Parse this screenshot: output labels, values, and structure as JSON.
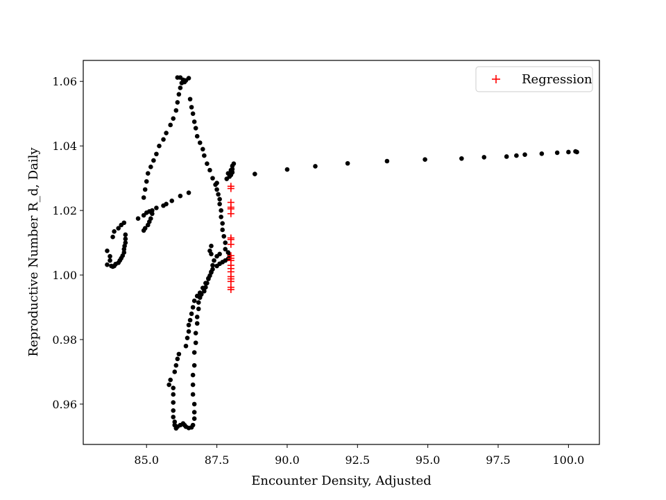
{
  "chart_data": {
    "type": "scatter",
    "title": "",
    "xlabel": "Encounter Density, Adjusted",
    "ylabel": "Reproductive Number R_d, Daily",
    "xlim": [
      82.75,
      101.1
    ],
    "ylim": [
      0.9475,
      1.0665
    ],
    "xticks": [
      "85.0",
      "87.5",
      "90.0",
      "92.5",
      "95.0",
      "97.5",
      "100.0"
    ],
    "xtick_values": [
      85.0,
      87.5,
      90.0,
      92.5,
      95.0,
      97.5,
      100.0
    ],
    "yticks": [
      "0.96",
      "0.98",
      "1.00",
      "1.02",
      "1.04",
      "1.06"
    ],
    "ytick_values": [
      0.96,
      0.98,
      1.0,
      1.02,
      1.04,
      1.06
    ],
    "grid": false,
    "legend_position": "top-right",
    "colors": {
      "observed": "#000000",
      "regression": "#ff0000"
    },
    "series": [
      {
        "marker": "dot",
        "color": "#000000",
        "points": [
          [
            83.6,
            1.0075
          ],
          [
            83.6,
            1.0032
          ],
          [
            83.7,
            1.0045
          ],
          [
            83.7,
            1.0058
          ],
          [
            83.75,
            1.0028
          ],
          [
            83.8,
            1.0026
          ],
          [
            83.85,
            1.0028
          ],
          [
            83.9,
            1.0034
          ],
          [
            84.0,
            1.0038
          ],
          [
            84.05,
            1.0045
          ],
          [
            84.1,
            1.0052
          ],
          [
            84.15,
            1.006
          ],
          [
            84.2,
            1.007
          ],
          [
            84.2,
            1.008
          ],
          [
            84.22,
            1.009
          ],
          [
            84.25,
            1.01
          ],
          [
            84.25,
            1.0112
          ],
          [
            84.25,
            1.0125
          ],
          [
            83.8,
            1.0118
          ],
          [
            83.85,
            1.0135
          ],
          [
            84.0,
            1.0145
          ],
          [
            84.1,
            1.0155
          ],
          [
            84.2,
            1.0162
          ],
          [
            84.9,
            1.0138
          ],
          [
            84.95,
            1.0145
          ],
          [
            85.05,
            1.0155
          ],
          [
            85.1,
            1.0165
          ],
          [
            85.15,
            1.0175
          ],
          [
            85.2,
            1.019
          ],
          [
            84.7,
            1.0175
          ],
          [
            84.9,
            1.0185
          ],
          [
            85.0,
            1.0193
          ],
          [
            85.1,
            1.0197
          ],
          [
            85.2,
            1.02
          ],
          [
            85.35,
            1.0208
          ],
          [
            85.6,
            1.0215
          ],
          [
            85.7,
            1.022
          ],
          [
            85.9,
            1.023
          ],
          [
            86.2,
            1.0245
          ],
          [
            86.5,
            1.0255
          ],
          [
            84.9,
            1.024
          ],
          [
            84.95,
            1.0265
          ],
          [
            85.0,
            1.029
          ],
          [
            85.05,
            1.0315
          ],
          [
            85.15,
            1.0335
          ],
          [
            85.25,
            1.0355
          ],
          [
            85.35,
            1.0375
          ],
          [
            85.45,
            1.04
          ],
          [
            85.6,
            1.042
          ],
          [
            85.7,
            1.044
          ],
          [
            85.85,
            1.0465
          ],
          [
            85.95,
            1.0485
          ],
          [
            86.05,
            1.051
          ],
          [
            86.1,
            1.0535
          ],
          [
            86.15,
            1.056
          ],
          [
            86.2,
            1.058
          ],
          [
            86.25,
            1.0595
          ],
          [
            86.1,
            1.0612
          ],
          [
            86.2,
            1.0612
          ],
          [
            86.3,
            1.0605
          ],
          [
            86.35,
            1.0598
          ],
          [
            86.4,
            1.0603
          ],
          [
            86.5,
            1.061
          ],
          [
            86.55,
            1.0545
          ],
          [
            86.6,
            1.052
          ],
          [
            86.65,
            1.05
          ],
          [
            86.7,
            1.0475
          ],
          [
            86.75,
            1.0455
          ],
          [
            86.8,
            1.043
          ],
          [
            86.9,
            1.041
          ],
          [
            87.0,
            1.039
          ],
          [
            87.05,
            1.037
          ],
          [
            87.15,
            1.0345
          ],
          [
            87.25,
            1.0325
          ],
          [
            87.35,
            1.03
          ],
          [
            87.45,
            1.028
          ],
          [
            87.5,
            1.0265
          ],
          [
            87.55,
            1.025
          ],
          [
            87.6,
            1.0235
          ],
          [
            87.6,
            1.022
          ],
          [
            87.65,
            1.02
          ],
          [
            87.65,
            1.018
          ],
          [
            87.7,
            1.016
          ],
          [
            87.7,
            1.014
          ],
          [
            87.75,
            1.012
          ],
          [
            87.8,
            1.01
          ],
          [
            87.8,
            1.008
          ],
          [
            87.9,
            1.007
          ],
          [
            87.95,
            1.006
          ],
          [
            87.9,
            1.005
          ],
          [
            87.8,
            1.0045
          ],
          [
            87.7,
            1.004
          ],
          [
            87.6,
            1.0035
          ],
          [
            87.5,
            1.0028
          ],
          [
            87.35,
            1.0018
          ],
          [
            87.3,
            1.0008
          ],
          [
            87.25,
            0.9998
          ],
          [
            87.2,
            0.9988
          ],
          [
            87.15,
            0.9975
          ],
          [
            87.1,
            0.9962
          ],
          [
            87.05,
            0.995
          ],
          [
            86.95,
            0.994
          ],
          [
            86.9,
            0.993
          ],
          [
            86.85,
            0.9915
          ],
          [
            86.85,
            0.9895
          ],
          [
            86.8,
            0.987
          ],
          [
            86.8,
            0.985
          ],
          [
            86.75,
            0.982
          ],
          [
            86.75,
            0.979
          ],
          [
            86.7,
            0.976
          ],
          [
            86.7,
            0.972
          ],
          [
            86.65,
            0.969
          ],
          [
            86.65,
            0.966
          ],
          [
            86.65,
            0.963
          ],
          [
            86.7,
            0.96
          ],
          [
            86.7,
            0.9575
          ],
          [
            86.7,
            0.9555
          ],
          [
            86.65,
            0.9535
          ],
          [
            86.6,
            0.9528
          ],
          [
            86.5,
            0.9526
          ],
          [
            86.4,
            0.953
          ],
          [
            86.35,
            0.9535
          ],
          [
            86.3,
            0.954
          ],
          [
            86.2,
            0.9535
          ],
          [
            86.1,
            0.953
          ],
          [
            86.05,
            0.9525
          ],
          [
            86.0,
            0.9535
          ],
          [
            86.0,
            0.9545
          ],
          [
            85.95,
            0.956
          ],
          [
            85.95,
            0.958
          ],
          [
            85.95,
            0.9605
          ],
          [
            85.95,
            0.963
          ],
          [
            85.95,
            0.965
          ],
          [
            85.85,
            0.9675
          ],
          [
            85.8,
            0.966
          ],
          [
            86.0,
            0.97
          ],
          [
            86.05,
            0.972
          ],
          [
            86.1,
            0.974
          ],
          [
            86.15,
            0.9755
          ],
          [
            86.4,
            0.978
          ],
          [
            86.45,
            0.9805
          ],
          [
            86.5,
            0.9825
          ],
          [
            86.5,
            0.9845
          ],
          [
            86.55,
            0.986
          ],
          [
            86.6,
            0.988
          ],
          [
            86.65,
            0.99
          ],
          [
            86.7,
            0.992
          ],
          [
            86.8,
            0.9935
          ],
          [
            86.9,
            0.9945
          ],
          [
            87.0,
            0.996
          ],
          [
            87.1,
            0.9975
          ],
          [
            87.2,
            0.999
          ],
          [
            87.3,
            1.001
          ],
          [
            87.35,
            1.003
          ],
          [
            87.4,
            1.0045
          ],
          [
            87.5,
            1.0058
          ],
          [
            87.6,
            1.0065
          ],
          [
            87.3,
            1.0065
          ],
          [
            87.25,
            1.0075
          ],
          [
            87.3,
            1.009
          ],
          [
            87.5,
            1.0285
          ],
          [
            87.85,
            1.0298
          ],
          [
            87.95,
            1.0305
          ],
          [
            88.0,
            1.031
          ],
          [
            88.05,
            1.0318
          ],
          [
            88.05,
            1.0328
          ],
          [
            88.05,
            1.0338
          ],
          [
            88.1,
            1.0345
          ],
          [
            88.0,
            1.0325
          ],
          [
            87.9,
            1.0315
          ],
          [
            88.85,
            1.0313
          ],
          [
            90.0,
            1.0327
          ],
          [
            91.0,
            1.0337
          ],
          [
            92.15,
            1.0346
          ],
          [
            93.55,
            1.0353
          ],
          [
            94.9,
            1.0358
          ],
          [
            96.2,
            1.0361
          ],
          [
            97.0,
            1.0365
          ],
          [
            97.8,
            1.0367
          ],
          [
            98.15,
            1.037
          ],
          [
            98.45,
            1.0373
          ],
          [
            99.05,
            1.0376
          ],
          [
            99.6,
            1.0379
          ],
          [
            100.0,
            1.0381
          ],
          [
            100.25,
            1.0383
          ],
          [
            100.3,
            1.0381
          ]
        ]
      },
      {
        "name": "Regression",
        "marker": "plus",
        "color": "#ff0000",
        "points": [
          [
            88.0,
            1.0275
          ],
          [
            88.0,
            1.0268
          ],
          [
            88.0,
            1.0225
          ],
          [
            88.0,
            1.021
          ],
          [
            88.0,
            1.0205
          ],
          [
            88.0,
            1.019
          ],
          [
            88.0,
            1.0115
          ],
          [
            88.0,
            1.011
          ],
          [
            88.0,
            1.0095
          ],
          [
            88.0,
            1.006
          ],
          [
            88.0,
            1.0052
          ],
          [
            88.0,
            1.0045
          ],
          [
            88.0,
            1.003
          ],
          [
            88.0,
            1.002
          ],
          [
            88.0,
            1.001
          ],
          [
            88.0,
            0.9995
          ],
          [
            88.0,
            0.9988
          ],
          [
            88.0,
            0.998
          ],
          [
            88.0,
            0.9962
          ],
          [
            88.0,
            0.9955
          ]
        ]
      }
    ]
  }
}
